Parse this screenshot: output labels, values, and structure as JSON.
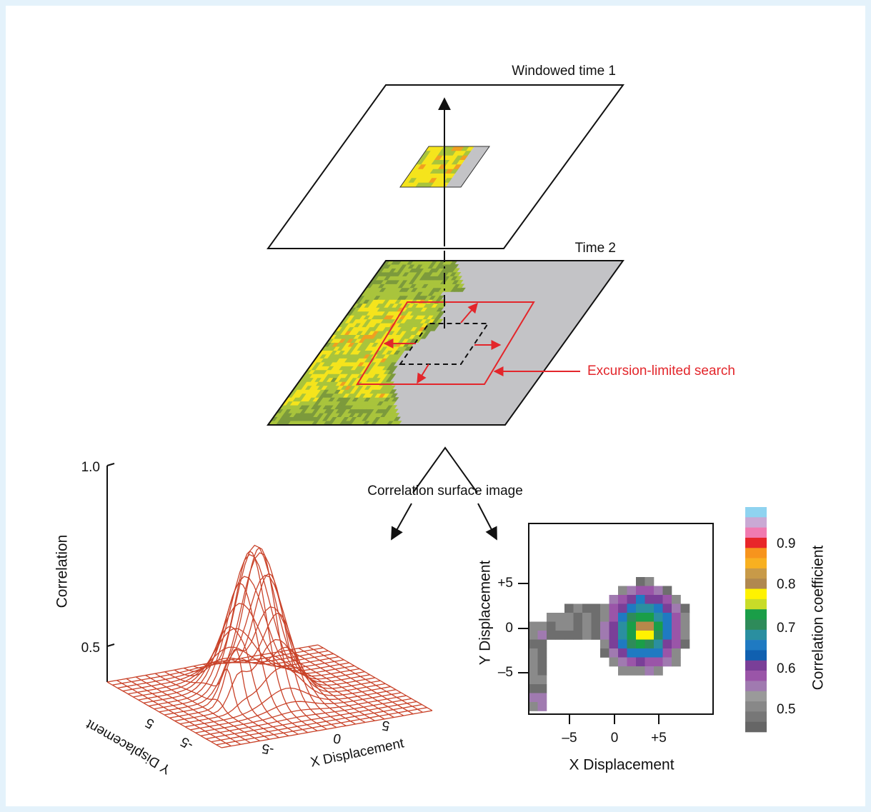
{
  "top_layer": {
    "label": "Windowed time 1"
  },
  "bottom_layer": {
    "label": "Time 2",
    "annotation": "Excursion-limited search"
  },
  "branch_label": "Correlation surface image",
  "surface_plot": {
    "z_label": "Correlation",
    "z_ticks": [
      "1.0",
      "0.5"
    ],
    "x_label": "X Displacement",
    "x_ticks": [
      "-5",
      "0",
      "5"
    ],
    "y_label": "Y Displacement",
    "y_ticks": [
      "5",
      "-5"
    ]
  },
  "image_plot": {
    "x_label": "X Displacement",
    "x_ticks": [
      "–5",
      "0",
      "+5"
    ],
    "y_label": "Y Displacement",
    "y_ticks": [
      "+5",
      "0",
      "–5"
    ]
  },
  "colorbar": {
    "label": "Correlation coefficient",
    "ticks": [
      "0.9",
      "0.8",
      "0.7",
      "0.6",
      "0.5"
    ]
  }
}
